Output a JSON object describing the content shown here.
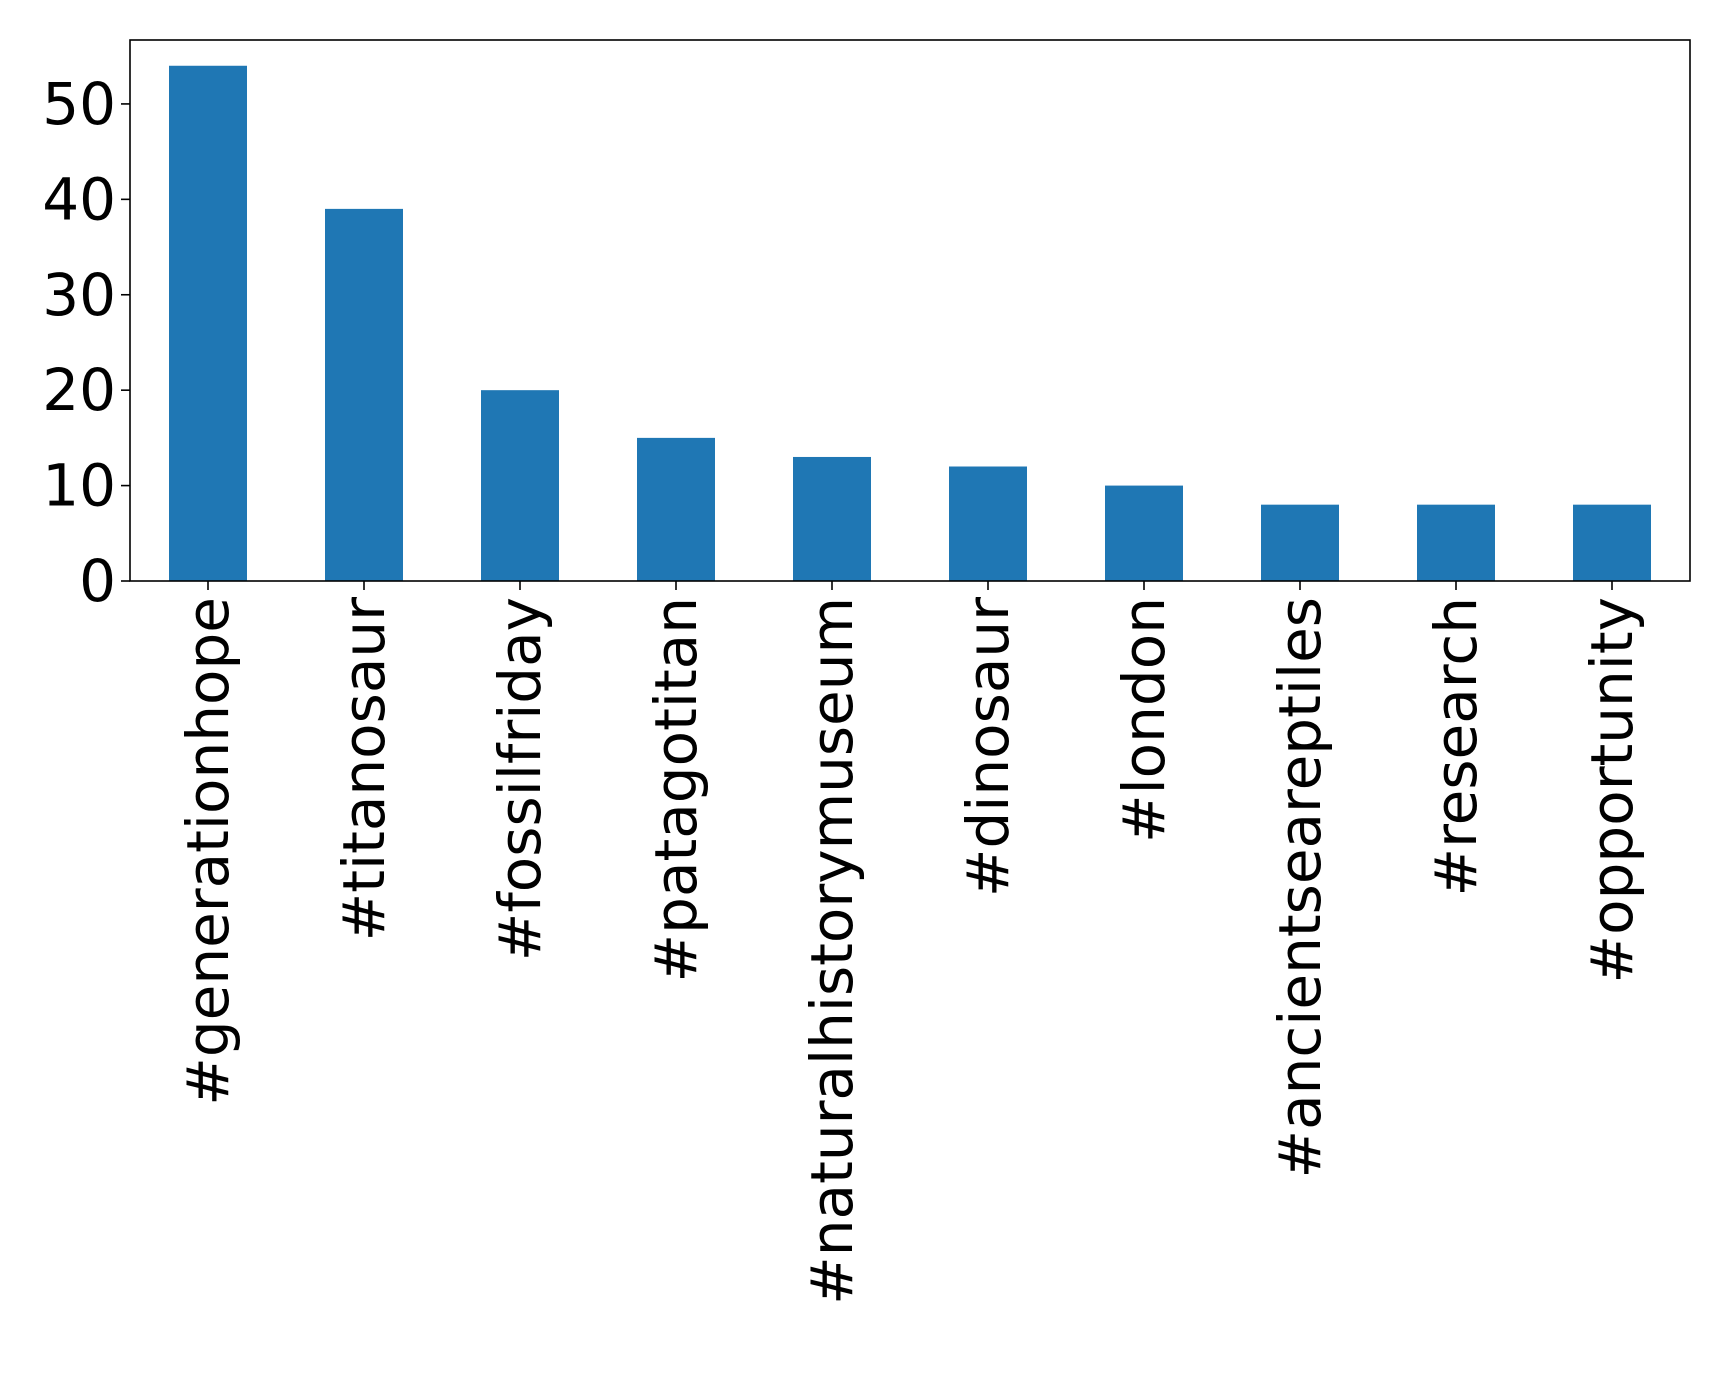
{
  "chart_data": {
    "type": "bar",
    "title": "",
    "xlabel": "",
    "ylabel": "",
    "categories": [
      "#generationhope",
      "#titanosaur",
      "#fossilfriday",
      "#patagotitan",
      "#naturalhistorymuseum",
      "#dinosaur",
      "#london",
      "#ancientseareptiles",
      "#research",
      "#opportunity"
    ],
    "values": [
      54,
      39,
      20,
      15,
      13,
      12,
      10,
      8,
      8,
      8
    ],
    "ylim": [
      0,
      56.7
    ],
    "yticks": [
      0,
      10,
      20,
      30,
      40,
      50
    ],
    "bar_color": "#1f77b4",
    "grid": false,
    "legend": "none"
  }
}
